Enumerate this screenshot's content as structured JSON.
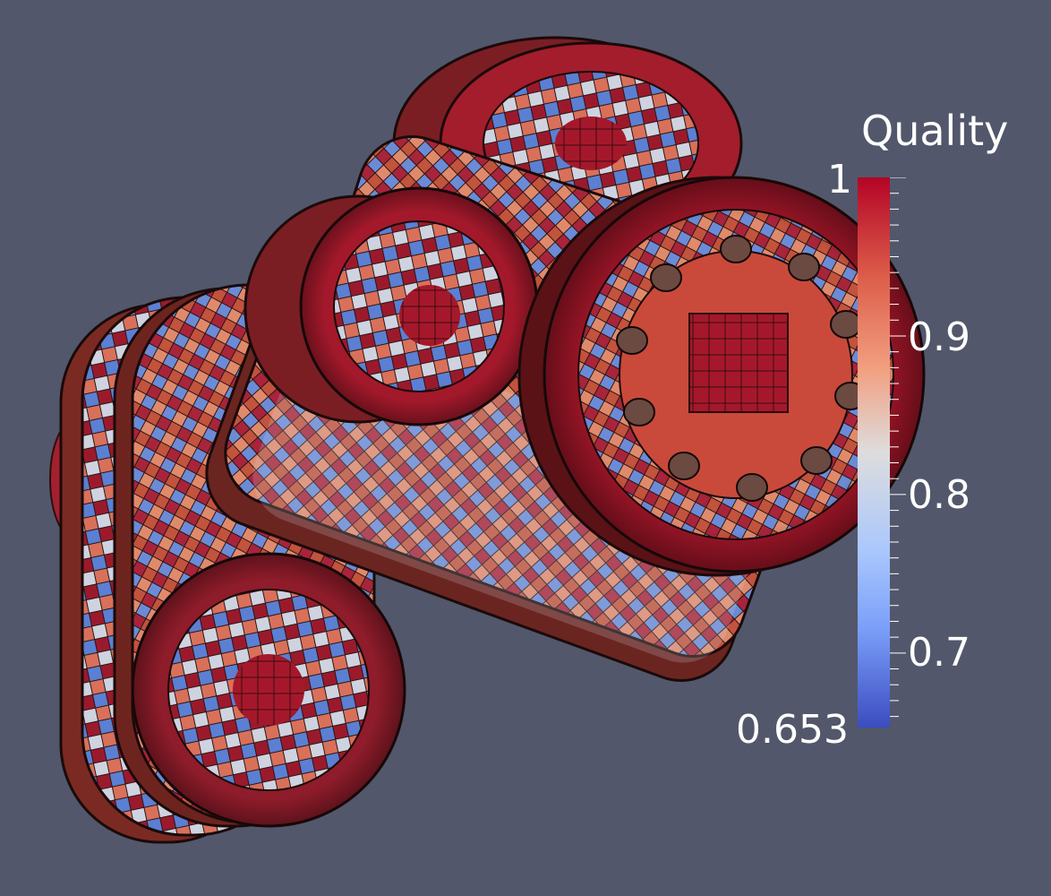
{
  "colorbar": {
    "title": "Quality",
    "min_label": "0.653",
    "max_label": "1",
    "min": 0.653,
    "max": 1,
    "ticks": [
      {
        "value": 0.9,
        "label": "0.9"
      },
      {
        "value": 0.8,
        "label": "0.8"
      },
      {
        "value": 0.7,
        "label": "0.7"
      }
    ],
    "colors": {
      "low": "#3b4cc0",
      "mid": "#dddddd",
      "high": "#b40426"
    }
  },
  "background": "#52576b"
}
